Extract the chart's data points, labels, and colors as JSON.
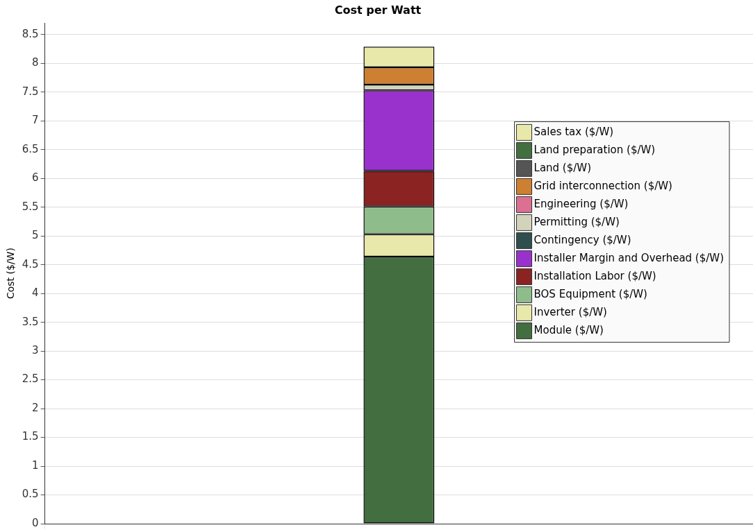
{
  "chart_data": {
    "type": "bar",
    "title": "Cost per Watt",
    "ylabel": "Cost ($/W)",
    "categories": [
      null
    ],
    "stacked": true,
    "legend": "right",
    "grid": true,
    "tick_labels": "y",
    "ylim": [
      0,
      8.7
    ],
    "yticks": [
      0,
      0.5,
      1,
      1.5,
      2,
      2.5,
      3,
      3.5,
      4,
      4.5,
      5,
      5.5,
      6,
      6.5,
      7,
      7.5,
      8,
      8.5
    ],
    "series": [
      {
        "name": "Module ($/W)",
        "color": "#426e40",
        "values": [
          4.64
        ]
      },
      {
        "name": "Inverter ($/W)",
        "color": "#e8e8aa",
        "values": [
          0.39
        ]
      },
      {
        "name": "BOS Equipment ($/W)",
        "color": "#8fbc8b",
        "values": [
          0.48
        ]
      },
      {
        "name": "Installation Labor ($/W)",
        "color": "#8b2323",
        "values": [
          0.62
        ]
      },
      {
        "name": "Installer Margin and Overhead ($/W)",
        "color": "#9932cc",
        "values": [
          1.4
        ]
      },
      {
        "name": "Contingency ($/W)",
        "color": "#2f4f4f",
        "values": [
          0
        ]
      },
      {
        "name": "Permitting ($/W)",
        "color": "#d3d3bc",
        "values": [
          0.1
        ]
      },
      {
        "name": "Engineering ($/W)",
        "color": "#db7093",
        "values": [
          0
        ]
      },
      {
        "name": "Grid interconnection ($/W)",
        "color": "#cd7f32",
        "values": [
          0.3
        ]
      },
      {
        "name": "Land ($/W)",
        "color": "#555555",
        "values": [
          0
        ]
      },
      {
        "name": "Land preparation ($/W)",
        "color": "#426e40",
        "values": [
          0
        ]
      },
      {
        "name": "Sales tax ($/W)",
        "color": "#e8e8aa",
        "values": [
          0.36
        ]
      }
    ]
  }
}
